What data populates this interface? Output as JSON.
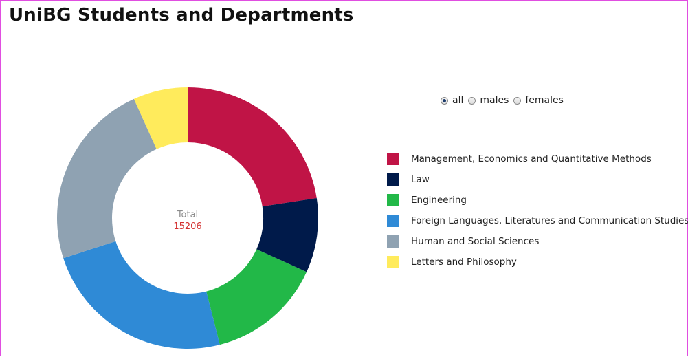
{
  "page": {
    "title": "UniBG Students and Departments"
  },
  "filter": {
    "options": [
      {
        "label": "all",
        "checked": true
      },
      {
        "label": "males",
        "checked": false
      },
      {
        "label": "females",
        "checked": false
      }
    ]
  },
  "chart_data": {
    "type": "pie",
    "style": "donut",
    "center_label": "Total",
    "center_value": "15206",
    "total": 15206,
    "legend_position": "right",
    "categories": [
      "Management, Economics and Quantitative Methods",
      "Law",
      "Engineering",
      "Foreign Languages, Literatures and Communication Studies",
      "Human and Social Sciences",
      "Letters and Philosophy"
    ],
    "values": [
      3430,
      1400,
      2170,
      3650,
      3530,
      1026
    ],
    "colors": [
      "#c01446",
      "#001a4a",
      "#22b848",
      "#2f8ad6",
      "#8fa2b2",
      "#ffeb5c"
    ]
  }
}
